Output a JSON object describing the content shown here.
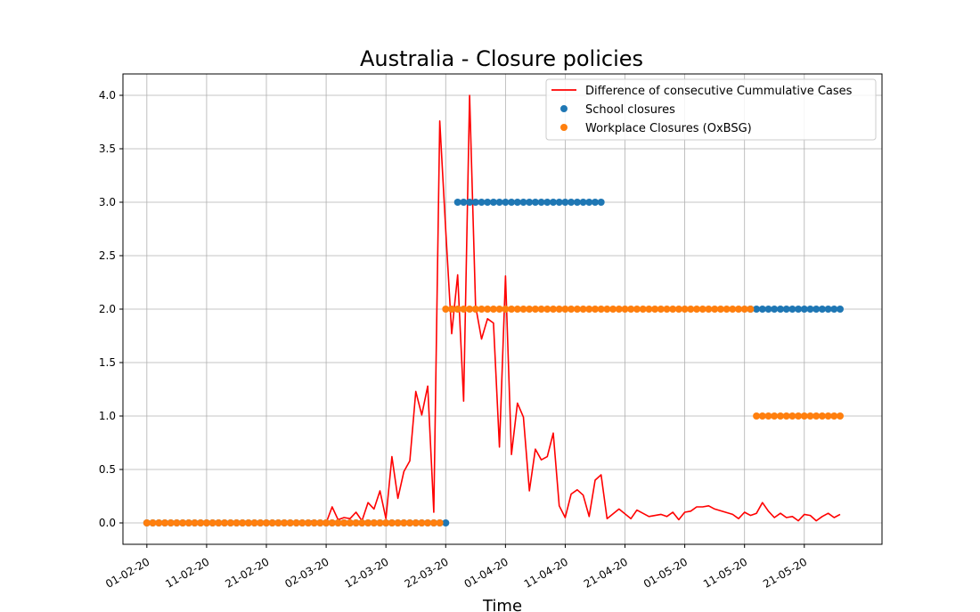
{
  "chart_data": {
    "type": "line+scatter",
    "title": "Australia - Closure policies",
    "xlabel": "Time",
    "ylabel": "",
    "xlim": [
      "2020-01-28",
      "2020-06-03"
    ],
    "ylim": [
      -0.2,
      4.2
    ],
    "x_ticks": [
      "01-02-20",
      "11-02-20",
      "21-02-20",
      "02-03-20",
      "12-03-20",
      "22-03-20",
      "01-04-20",
      "11-04-20",
      "21-04-20",
      "01-05-20",
      "11-05-20",
      "21-05-20"
    ],
    "y_ticks": [
      "0.0",
      "0.5",
      "1.0",
      "1.5",
      "2.0",
      "2.5",
      "3.0",
      "3.5",
      "4.0"
    ],
    "grid": true,
    "legend_position": "top-right",
    "colors": {
      "cases": "#ff0000",
      "school": "#1f77b4",
      "workplace": "#ff7f0e"
    },
    "series": [
      {
        "name": "Difference of consecutive Cummulative Cases",
        "type": "line",
        "x": [
          "2020-02-28",
          "2020-03-01",
          "2020-03-02",
          "2020-03-03",
          "2020-03-04",
          "2020-03-05",
          "2020-03-06",
          "2020-03-07",
          "2020-03-08",
          "2020-03-09",
          "2020-03-10",
          "2020-03-11",
          "2020-03-12",
          "2020-03-13",
          "2020-03-14",
          "2020-03-15",
          "2020-03-16",
          "2020-03-17",
          "2020-03-18",
          "2020-03-19",
          "2020-03-20",
          "2020-03-21",
          "2020-03-22",
          "2020-03-23",
          "2020-03-24",
          "2020-03-25",
          "2020-03-26",
          "2020-03-27",
          "2020-03-28",
          "2020-03-29",
          "2020-03-30",
          "2020-03-31",
          "2020-04-01",
          "2020-04-02",
          "2020-04-03",
          "2020-04-04",
          "2020-04-05",
          "2020-04-06",
          "2020-04-07",
          "2020-04-08",
          "2020-04-09",
          "2020-04-10",
          "2020-04-11",
          "2020-04-12",
          "2020-04-13",
          "2020-04-14",
          "2020-04-15",
          "2020-04-16",
          "2020-04-17",
          "2020-04-18",
          "2020-04-20",
          "2020-04-22",
          "2020-04-23",
          "2020-04-25",
          "2020-04-27",
          "2020-04-28",
          "2020-04-29",
          "2020-04-30",
          "2020-05-01",
          "2020-05-02",
          "2020-05-03",
          "2020-05-04",
          "2020-05-05",
          "2020-05-06",
          "2020-05-09",
          "2020-05-10",
          "2020-05-11",
          "2020-05-12",
          "2020-05-13",
          "2020-05-14",
          "2020-05-15",
          "2020-05-16",
          "2020-05-17",
          "2020-05-18",
          "2020-05-19",
          "2020-05-20",
          "2020-05-21",
          "2020-05-22",
          "2020-05-23",
          "2020-05-24",
          "2020-05-25",
          "2020-05-26",
          "2020-05-27"
        ],
        "values": [
          0.02,
          0.01,
          0.0,
          0.15,
          0.03,
          0.05,
          0.04,
          0.1,
          0.02,
          0.19,
          0.13,
          0.3,
          0.04,
          0.62,
          0.23,
          0.48,
          0.58,
          1.23,
          1.01,
          1.28,
          0.1,
          3.76,
          2.74,
          1.77,
          2.32,
          1.14,
          4.0,
          2.03,
          1.72,
          1.91,
          1.87,
          0.71,
          2.31,
          0.64,
          1.12,
          0.99,
          0.3,
          0.69,
          0.59,
          0.62,
          0.84,
          0.16,
          0.05,
          0.27,
          0.31,
          0.26,
          0.06,
          0.4,
          0.45,
          0.04,
          0.13,
          0.04,
          0.12,
          0.06,
          0.08,
          0.06,
          0.1,
          0.03,
          0.1,
          0.11,
          0.15,
          0.15,
          0.16,
          0.13,
          0.08,
          0.04,
          0.1,
          0.07,
          0.09,
          0.19,
          0.11,
          0.05,
          0.09,
          0.05,
          0.06,
          0.02,
          0.08,
          0.07,
          0.02,
          0.06,
          0.09,
          0.05,
          0.08
        ]
      },
      {
        "name": "School closures",
        "type": "scatter",
        "segments": [
          {
            "start": "2020-02-01",
            "end": "2020-03-22",
            "value": 0
          },
          {
            "start": "2020-03-24",
            "end": "2020-04-17",
            "value": 3
          },
          {
            "start": "2020-05-12",
            "end": "2020-05-27",
            "value": 2
          }
        ]
      },
      {
        "name": "Workplace Closures (OxBSG)",
        "type": "scatter",
        "segments": [
          {
            "start": "2020-02-01",
            "end": "2020-03-21",
            "value": 0
          },
          {
            "start": "2020-03-22",
            "end": "2020-05-12",
            "value": 2
          },
          {
            "start": "2020-05-13",
            "end": "2020-05-27",
            "value": 1
          }
        ]
      }
    ]
  }
}
